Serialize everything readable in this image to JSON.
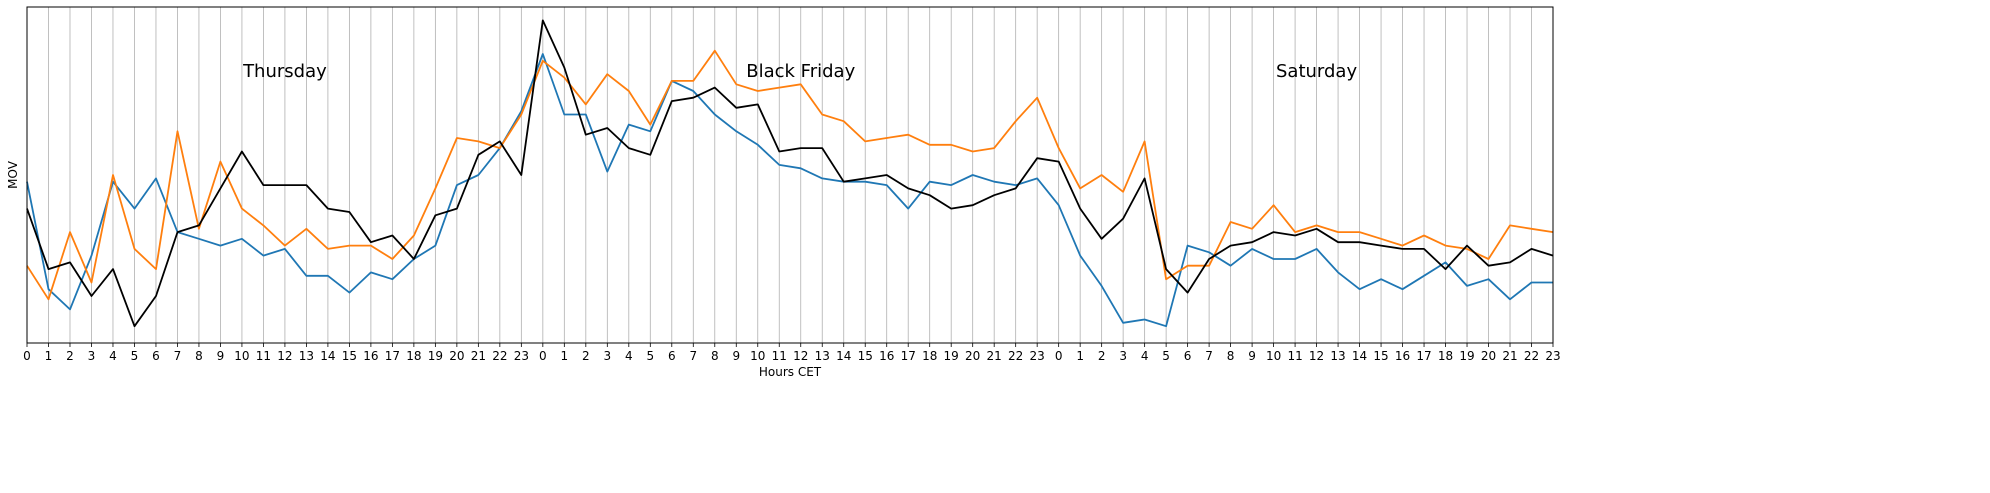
{
  "chart_data": {
    "type": "line",
    "title": "",
    "xlabel": "Hours CET",
    "ylabel": "MOV",
    "x_tick_labels": [
      "0",
      "1",
      "2",
      "3",
      "4",
      "5",
      "6",
      "7",
      "8",
      "9",
      "10",
      "11",
      "12",
      "13",
      "14",
      "15",
      "16",
      "17",
      "18",
      "19",
      "20",
      "21",
      "22",
      "23",
      "0",
      "1",
      "2",
      "3",
      "4",
      "5",
      "6",
      "7",
      "8",
      "9",
      "10",
      "11",
      "12",
      "13",
      "14",
      "15",
      "16",
      "17",
      "18",
      "19",
      "20",
      "21",
      "22",
      "23",
      "0",
      "1",
      "2",
      "3",
      "4",
      "5",
      "6",
      "7",
      "8",
      "9",
      "10",
      "11",
      "12",
      "13",
      "14",
      "15",
      "16",
      "17",
      "18",
      "19",
      "20",
      "21",
      "22",
      "23"
    ],
    "ylim": [
      0,
      100
    ],
    "y_ticks_shown": false,
    "grid": "vertical lines at every hour",
    "annotations": [
      {
        "text": "Thursday",
        "x": 12,
        "y": 81
      },
      {
        "text": "Black Friday",
        "x": 36,
        "y": 81
      },
      {
        "text": "Saturday",
        "x": 60,
        "y": 81
      }
    ],
    "series": [
      {
        "color": "#1f77b4",
        "values": [
          48,
          16,
          10,
          26,
          48,
          40,
          49,
          33,
          31,
          29,
          31,
          26,
          28,
          20,
          20,
          15,
          21,
          19,
          25,
          29,
          47,
          50,
          58,
          69,
          86,
          68,
          68,
          51,
          65,
          63,
          78,
          75,
          68,
          63,
          59,
          53,
          52,
          49,
          48,
          48,
          47,
          40,
          48,
          47,
          50,
          48,
          47,
          49,
          41,
          26,
          17,
          6,
          7,
          5,
          29,
          27,
          23,
          28,
          25,
          25,
          28,
          21,
          16,
          19,
          16,
          20,
          24,
          17,
          19,
          13,
          18,
          18
        ]
      },
      {
        "color": "#ff7f0e",
        "values": [
          23,
          13,
          33,
          18,
          50,
          28,
          22,
          63,
          34,
          54,
          40,
          35,
          29,
          34,
          28,
          29,
          29,
          25,
          32,
          46,
          61,
          60,
          58,
          68,
          84,
          79,
          71,
          80,
          75,
          65,
          78,
          78,
          87,
          77,
          75,
          76,
          77,
          68,
          66,
          60,
          61,
          62,
          59,
          59,
          57,
          58,
          66,
          73,
          58,
          46,
          50,
          45,
          60,
          19,
          23,
          23,
          36,
          34,
          41,
          33,
          35,
          33,
          33,
          31,
          29,
          32,
          29,
          28,
          25,
          35,
          34,
          33
        ]
      },
      {
        "color": "#000000",
        "values": [
          40,
          22,
          24,
          14,
          22,
          5,
          14,
          33,
          35,
          46,
          57,
          47,
          47,
          47,
          40,
          39,
          30,
          32,
          25,
          38,
          40,
          56,
          60,
          50,
          96,
          82,
          62,
          64,
          58,
          56,
          72,
          73,
          76,
          70,
          71,
          57,
          58,
          58,
          48,
          49,
          50,
          46,
          44,
          40,
          41,
          44,
          46,
          55,
          54,
          40,
          31,
          37,
          49,
          22,
          15,
          25,
          29,
          30,
          33,
          32,
          34,
          30,
          30,
          29,
          28,
          28,
          22,
          29,
          23,
          24,
          28,
          26
        ]
      }
    ]
  }
}
